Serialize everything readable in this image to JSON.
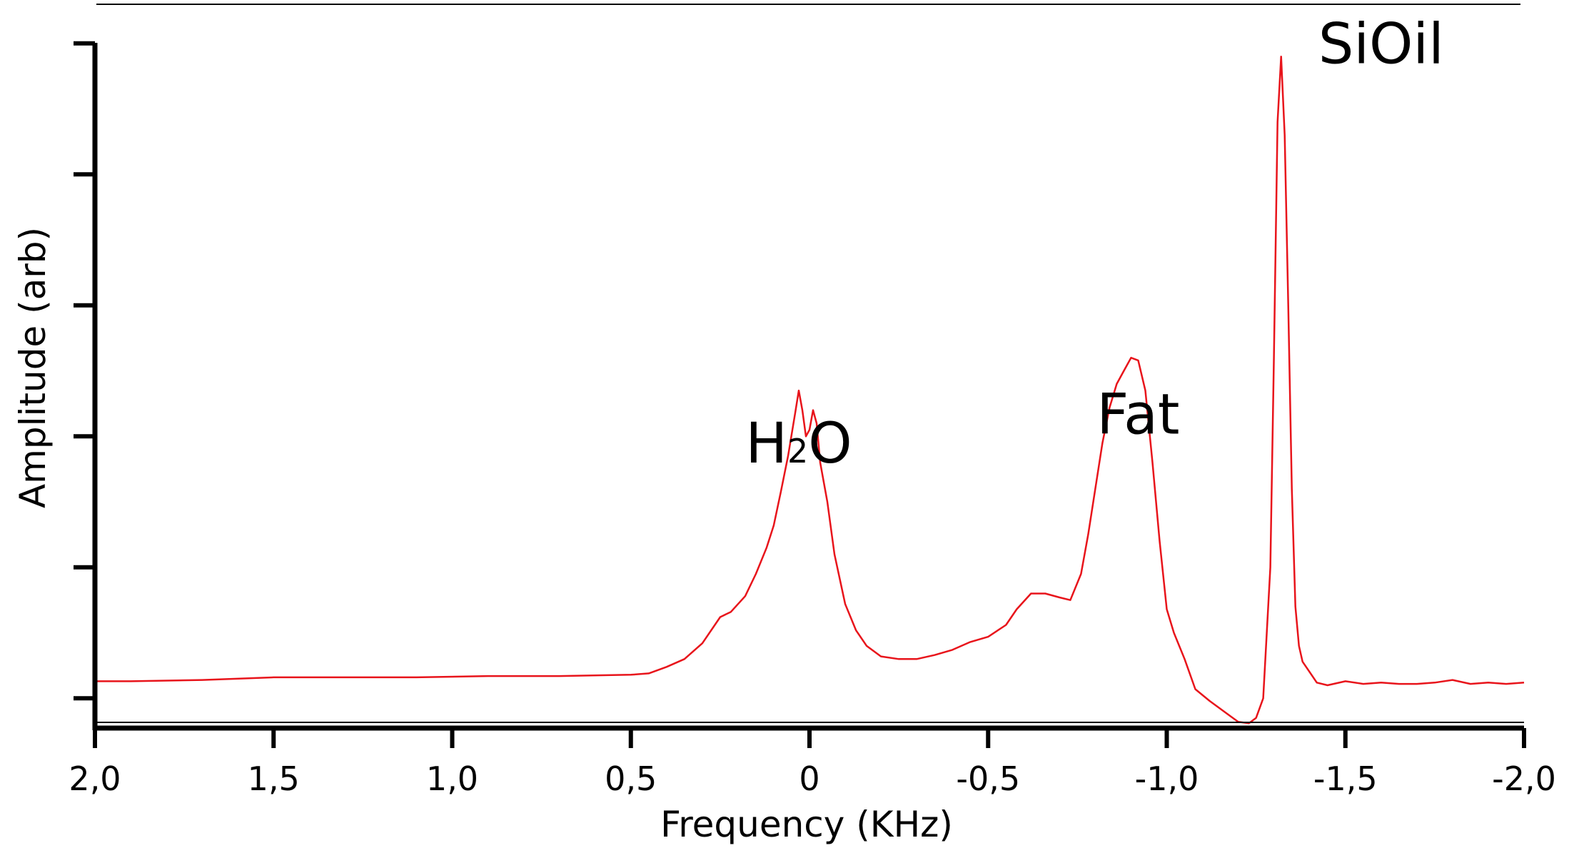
{
  "chart_data": {
    "type": "line",
    "xlabel": "Frequency (KHz)",
    "ylabel": "Amplitude (arb)",
    "xlim": [
      2.0,
      -2.0
    ],
    "ylim": [
      0,
      5.1
    ],
    "x_reversed": true,
    "x_ticks": [
      {
        "value": 2.0,
        "label": "2,0"
      },
      {
        "value": 1.5,
        "label": "1,5"
      },
      {
        "value": 1.0,
        "label": "1,0"
      },
      {
        "value": 0.5,
        "label": "0,5"
      },
      {
        "value": 0.0,
        "label": "0"
      },
      {
        "value": -0.5,
        "label": "-0,5"
      },
      {
        "value": -1.0,
        "label": "-1,0"
      },
      {
        "value": -1.5,
        "label": "-1,5"
      },
      {
        "value": -2.0,
        "label": "-2,0"
      }
    ],
    "y_ticks": [
      0.2,
      1.2,
      2.2,
      3.2,
      4.2,
      5.2
    ],
    "y_tick_labels_shown": false,
    "grid": false,
    "line_color": "#e8141b",
    "annotations": [
      {
        "text": "H",
        "subscript": "2",
        "suffix": "O",
        "x": 0.03,
        "y": 2.0
      },
      {
        "text": "Fat",
        "x": -0.92,
        "y": 2.22
      },
      {
        "text": "SiOil",
        "x": -1.6,
        "y": 5.05
      }
    ],
    "series": [
      {
        "x": [
          2.0,
          1.9,
          1.7,
          1.5,
          1.3,
          1.1,
          0.9,
          0.7,
          0.5,
          0.45,
          0.4,
          0.35,
          0.3,
          0.25,
          0.22,
          0.18,
          0.15,
          0.12,
          0.1,
          0.08,
          0.06,
          0.04,
          0.03,
          0.02,
          0.01,
          0.0,
          -0.01,
          -0.02,
          -0.03,
          -0.05,
          -0.07,
          -0.1,
          -0.13,
          -0.16,
          -0.2,
          -0.25,
          -0.3,
          -0.35,
          -0.4,
          -0.45,
          -0.5,
          -0.55,
          -0.58,
          -0.62,
          -0.66,
          -0.7,
          -0.73,
          -0.76,
          -0.78,
          -0.8,
          -0.82,
          -0.84,
          -0.86,
          -0.88,
          -0.9,
          -0.92,
          -0.94,
          -0.96,
          -0.98,
          -1.0,
          -1.02,
          -1.05,
          -1.08,
          -1.12,
          -1.15,
          -1.18,
          -1.2,
          -1.23,
          -1.25,
          -1.27,
          -1.29,
          -1.3,
          -1.31,
          -1.32,
          -1.33,
          -1.34,
          -1.35,
          -1.36,
          -1.37,
          -1.38,
          -1.4,
          -1.42,
          -1.45,
          -1.5,
          -1.55,
          -1.6,
          -1.65,
          -1.7,
          -1.75,
          -1.8,
          -1.85,
          -1.9,
          -1.95,
          -2.0
        ],
        "y": [
          0.33,
          0.33,
          0.34,
          0.36,
          0.36,
          0.36,
          0.37,
          0.37,
          0.38,
          0.39,
          0.44,
          0.5,
          0.62,
          0.82,
          0.86,
          0.98,
          1.15,
          1.35,
          1.52,
          1.78,
          2.05,
          2.38,
          2.55,
          2.4,
          2.2,
          2.25,
          2.4,
          2.3,
          2.0,
          1.7,
          1.3,
          0.92,
          0.72,
          0.6,
          0.52,
          0.5,
          0.5,
          0.53,
          0.57,
          0.63,
          0.67,
          0.76,
          0.88,
          1.0,
          1.0,
          0.97,
          0.95,
          1.15,
          1.45,
          1.8,
          2.15,
          2.42,
          2.6,
          2.7,
          2.8,
          2.78,
          2.55,
          2.0,
          1.4,
          0.88,
          0.7,
          0.5,
          0.27,
          0.18,
          0.12,
          0.06,
          0.02,
          0.01,
          0.05,
          0.2,
          1.2,
          2.8,
          4.6,
          5.1,
          4.5,
          3.2,
          1.8,
          0.9,
          0.6,
          0.48,
          0.4,
          0.32,
          0.3,
          0.33,
          0.31,
          0.32,
          0.31,
          0.31,
          0.32,
          0.34,
          0.31,
          0.32,
          0.31,
          0.32
        ]
      }
    ]
  }
}
